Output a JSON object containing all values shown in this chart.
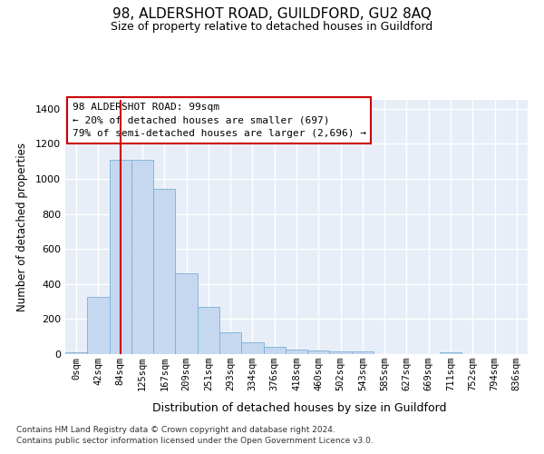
{
  "title": "98, ALDERSHOT ROAD, GUILDFORD, GU2 8AQ",
  "subtitle": "Size of property relative to detached houses in Guildford",
  "xlabel": "Distribution of detached houses by size in Guildford",
  "ylabel": "Number of detached properties",
  "bar_labels": [
    "0sqm",
    "42sqm",
    "84sqm",
    "125sqm",
    "167sqm",
    "209sqm",
    "251sqm",
    "293sqm",
    "334sqm",
    "376sqm",
    "418sqm",
    "460sqm",
    "502sqm",
    "543sqm",
    "585sqm",
    "627sqm",
    "669sqm",
    "711sqm",
    "752sqm",
    "794sqm",
    "836sqm"
  ],
  "bar_values": [
    8,
    325,
    1110,
    1110,
    940,
    460,
    270,
    125,
    65,
    40,
    25,
    20,
    18,
    15,
    0,
    0,
    0,
    12,
    0,
    0,
    0
  ],
  "bar_color": "#c5d8f0",
  "bar_edge_color": "#7aafd4",
  "vline_x": 2,
  "vline_color": "#cc0000",
  "ylim": [
    0,
    1450
  ],
  "yticks": [
    0,
    200,
    400,
    600,
    800,
    1000,
    1200,
    1400
  ],
  "annotation_title": "98 ALDERSHOT ROAD: 99sqm",
  "annotation_line1": "← 20% of detached houses are smaller (697)",
  "annotation_line2": "79% of semi-detached houses are larger (2,696) →",
  "annotation_box_color": "#ffffff",
  "annotation_border_color": "#cc0000",
  "plot_bg_color": "#e8eef8",
  "fig_bg_color": "#ffffff",
  "grid_color": "#ffffff",
  "footer1": "Contains HM Land Registry data © Crown copyright and database right 2024.",
  "footer2": "Contains public sector information licensed under the Open Government Licence v3.0."
}
